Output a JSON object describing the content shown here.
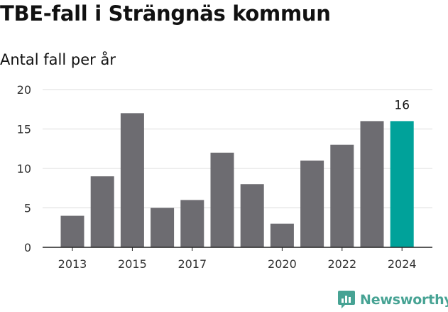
{
  "title": "TBE-fall i Strängnäs kommun",
  "subtitle": "Antal fall per år",
  "brand": {
    "name": "Newsworthy",
    "icon": "newsworthy-logo-icon"
  },
  "colors": {
    "bar": "#6d6c71",
    "highlight": "#00a29a",
    "grid": "#dcdcdc",
    "axis": "#222222",
    "brand": "#47a394"
  },
  "chart_data": {
    "type": "bar",
    "categories": [
      "2013",
      "2014",
      "2015",
      "2016",
      "2017",
      "2018",
      "2019",
      "2020",
      "2021",
      "2022",
      "2023",
      "2024"
    ],
    "values": [
      4,
      9,
      17,
      5,
      6,
      12,
      8,
      3,
      11,
      13,
      16,
      16
    ],
    "x_tick_labels": [
      "2013",
      "2015",
      "2017",
      "2020",
      "2022",
      "2024"
    ],
    "y_ticks": [
      0,
      5,
      10,
      15,
      20
    ],
    "ylim": [
      0,
      20
    ],
    "highlight_category": "2024",
    "data_labels": [
      {
        "category": "2024",
        "text": "16"
      }
    ],
    "title": "TBE-fall i Strängnäs kommun",
    "ylabel": "Antal fall per år",
    "xlabel": "",
    "grid": "horizontal"
  }
}
